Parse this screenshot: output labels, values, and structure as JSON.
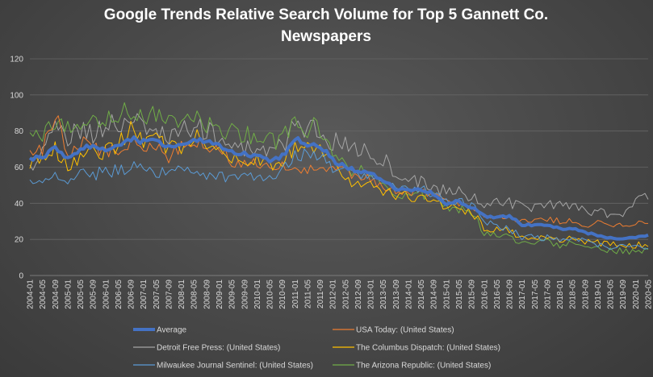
{
  "chart_data": {
    "type": "line",
    "title": "Google Trends Relative Search Volume for Top 5 Gannett Co. Newspapers",
    "title_lines": [
      "Google Trends Relative Search Volume for Top 5 Gannett Co.",
      "Newspapers"
    ],
    "ylim": [
      0,
      120
    ],
    "yticks": [
      0,
      20,
      40,
      60,
      80,
      100,
      120
    ],
    "grid": true,
    "legend_position": "bottom",
    "x_start": "2004-01",
    "x_tick_labels": [
      "2004-01",
      "2004-05",
      "2004-09",
      "2005-01",
      "2005-05",
      "2005-09",
      "2006-01",
      "2006-05",
      "2006-09",
      "2007-01",
      "2007-05",
      "2007-09",
      "2008-01",
      "2008-05",
      "2008-09",
      "2009-01",
      "2009-05",
      "2009-09",
      "2010-01",
      "2010-05",
      "2010-09",
      "2011-01",
      "2011-05",
      "2011-09",
      "2012-01",
      "2012-05",
      "2012-09",
      "2013-01",
      "2013-05",
      "2013-09",
      "2014-01",
      "2014-05",
      "2014-09",
      "2015-01",
      "2015-05",
      "2015-09",
      "2016-01",
      "2016-05",
      "2016-09",
      "2017-01",
      "2017-05",
      "2017-09",
      "2018-01",
      "2018-05",
      "2018-09",
      "2019-01",
      "2019-05",
      "2019-09",
      "2020-01",
      "2020-05"
    ],
    "series_anchor_step_months": 4,
    "series": [
      {
        "name": "Average",
        "color": "#4472c4",
        "anchors": [
          64,
          66,
          70,
          64,
          70,
          72,
          70,
          71,
          76,
          74,
          74,
          72,
          72,
          75,
          74,
          72,
          68,
          67,
          66,
          63,
          66,
          76,
          72,
          72,
          64,
          60,
          58,
          56,
          53,
          48,
          47,
          48,
          45,
          40,
          41,
          38,
          33,
          32,
          33,
          28,
          28,
          28,
          26,
          26,
          24,
          22,
          21,
          20,
          21,
          22
        ]
      },
      {
        "name": "USA Today: (United States)",
        "color": "#ed7d31",
        "anchors": [
          66,
          70,
          90,
          65,
          74,
          70,
          70,
          68,
          74,
          70,
          72,
          66,
          72,
          74,
          72,
          70,
          64,
          62,
          62,
          58,
          60,
          60,
          58,
          58,
          58,
          58,
          54,
          54,
          50,
          46,
          46,
          46,
          44,
          40,
          40,
          37,
          34,
          33,
          33,
          30,
          30,
          31,
          30,
          30,
          28,
          29,
          28,
          28,
          29,
          28
        ]
      },
      {
        "name": "Detroit Free Press: (United States)",
        "color": "#a5a5a5",
        "anchors": [
          58,
          70,
          82,
          76,
          80,
          78,
          84,
          82,
          86,
          82,
          80,
          76,
          80,
          82,
          80,
          76,
          72,
          70,
          70,
          68,
          72,
          82,
          80,
          80,
          74,
          72,
          70,
          68,
          64,
          58,
          54,
          52,
          50,
          46,
          46,
          44,
          40,
          40,
          40,
          39,
          38,
          40,
          40,
          38,
          36,
          35,
          33,
          34,
          40,
          44
        ]
      },
      {
        "name": "The Columbus Dispatch: (United States)",
        "color": "#ffc000",
        "anchors": [
          62,
          66,
          72,
          58,
          66,
          68,
          68,
          72,
          80,
          76,
          76,
          70,
          72,
          76,
          74,
          72,
          66,
          62,
          64,
          60,
          64,
          72,
          70,
          72,
          60,
          52,
          52,
          50,
          47,
          44,
          44,
          44,
          42,
          38,
          37,
          36,
          26,
          25,
          25,
          21,
          21,
          22,
          20,
          20,
          19,
          18,
          18,
          17,
          17,
          17
        ]
      },
      {
        "name": "Milwaukee Journal Sentinel: (United States)",
        "color": "#5b9bd5",
        "anchors": [
          50,
          52,
          56,
          54,
          56,
          56,
          58,
          58,
          60,
          58,
          58,
          56,
          58,
          58,
          56,
          56,
          54,
          54,
          54,
          54,
          58,
          66,
          66,
          66,
          60,
          58,
          56,
          55,
          52,
          49,
          47,
          47,
          46,
          42,
          41,
          39,
          30,
          27,
          26,
          21,
          21,
          21,
          20,
          20,
          19,
          17,
          16,
          16,
          16,
          16
        ]
      },
      {
        "name": "The Arizona Republic: (United States)",
        "color": "#70ad47",
        "anchors": [
          84,
          78,
          84,
          80,
          86,
          86,
          86,
          90,
          92,
          88,
          88,
          86,
          84,
          86,
          84,
          82,
          80,
          78,
          76,
          74,
          76,
          84,
          82,
          82,
          66,
          60,
          58,
          56,
          50,
          46,
          45,
          45,
          44,
          38,
          37,
          35,
          24,
          23,
          22,
          18,
          18,
          19,
          17,
          18,
          17,
          15,
          14,
          14,
          13,
          14
        ]
      }
    ]
  }
}
